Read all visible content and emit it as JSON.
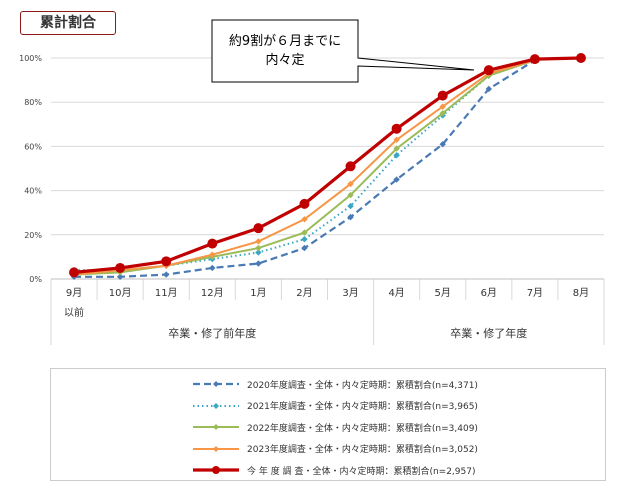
{
  "title": "累計割合",
  "callout": {
    "line1": "約9割が６月までに",
    "line2": "内々定"
  },
  "chart_data": {
    "type": "line",
    "categories": [
      "9月\n以前",
      "10月",
      "11月",
      "12月",
      "1月",
      "2月",
      "3月",
      "4月",
      "5月",
      "6月",
      "7月",
      "8月"
    ],
    "category_labels": [
      "9月",
      "10月",
      "11月",
      "12月",
      "1月",
      "2月",
      "3月",
      "4月",
      "5月",
      "6月",
      "7月",
      "8月"
    ],
    "first_category_sub": "以前",
    "groups": [
      {
        "label": "卒業・修了前年度",
        "span": [
          0,
          6
        ]
      },
      {
        "label": "卒業・修了年度",
        "span": [
          7,
          11
        ]
      }
    ],
    "ylim": [
      0,
      100
    ],
    "yticks": [
      "0%",
      "20%",
      "40%",
      "60%",
      "80%",
      "100%"
    ],
    "grid": true,
    "legend_position": "bottom",
    "series": [
      {
        "name": "2020年度調査・全体・内々定時期：累積割合(n=4,371)",
        "color": "#4a7ab5",
        "style": "dashed",
        "values": [
          1,
          1,
          2,
          5,
          7,
          14,
          28,
          45,
          61,
          86,
          99,
          null
        ]
      },
      {
        "name": "2021年度調査・全体・内々定時期：累積割合(n=3,965)",
        "color": "#3ba6c4",
        "style": "dotted",
        "values": [
          4,
          4,
          6,
          9,
          12,
          18,
          33,
          56,
          74,
          92,
          99,
          null
        ]
      },
      {
        "name": "2022年度調査・全体・内々定時期：累積割合(n=3,409)",
        "color": "#9bbb59",
        "style": "solid",
        "values": [
          2,
          3,
          6,
          10,
          14,
          21,
          38,
          59,
          75,
          92,
          99,
          null
        ]
      },
      {
        "name": "2023年度調査・全体・内々定時期：累積割合(n=3,052)",
        "color": "#f79646",
        "style": "solid",
        "values": [
          2,
          4,
          6,
          11,
          17,
          27,
          43,
          63,
          78,
          93,
          99,
          null
        ]
      },
      {
        "name": "今 年 度 調 査・全体・内々定時期：累積割合(n=2,957)",
        "color": "#c00000",
        "style": "thick",
        "values": [
          3,
          5,
          8,
          16,
          23,
          34,
          51,
          68,
          83,
          94.5,
          99.5,
          100
        ]
      }
    ]
  }
}
